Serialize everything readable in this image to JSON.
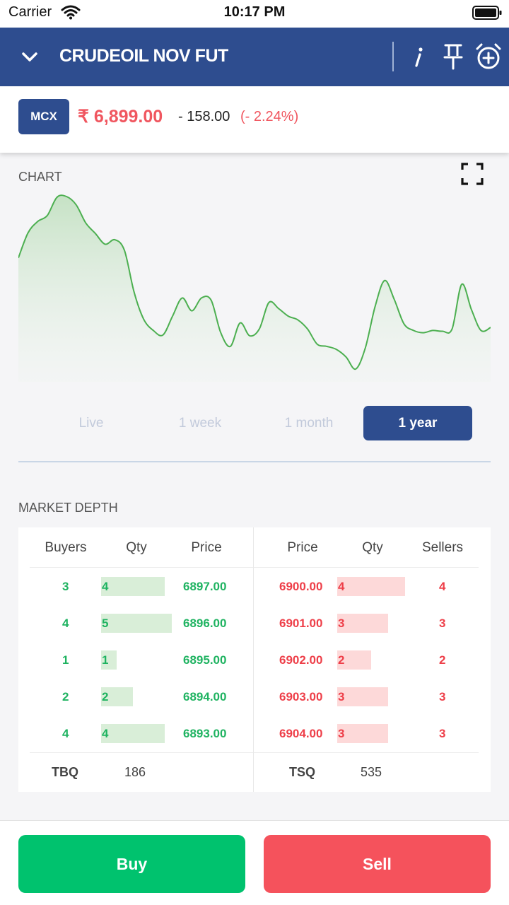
{
  "status_bar": {
    "carrier": "Carrier",
    "time": "10:17 PM"
  },
  "header": {
    "title": "CRUDEOIL NOV FUT",
    "icons": [
      "chevron-down-icon",
      "info-icon",
      "pin-icon",
      "alarm-add-icon"
    ]
  },
  "quote": {
    "exchange": "MCX",
    "price": "₹ 6,899.00",
    "change": "- 158.00",
    "change_pct": "(- 2.24%)"
  },
  "chart": {
    "label": "CHART",
    "ranges": [
      "Live",
      "1 week",
      "1 month",
      "1 year"
    ],
    "selected_range": "1 year"
  },
  "chart_data": {
    "type": "area",
    "color": "#4caf50",
    "values": [
      6970,
      7003,
      7018,
      7026,
      7050,
      7051,
      7040,
      7016,
      7002,
      6988,
      6994,
      6980,
      6925,
      6889,
      6874,
      6868,
      6893,
      6917,
      6900,
      6917,
      6914,
      6871,
      6853,
      6884,
      6867,
      6876,
      6911,
      6903,
      6893,
      6888,
      6876,
      6856,
      6853,
      6849,
      6839,
      6823,
      6851,
      6905,
      6940,
      6915,
      6883,
      6874,
      6871,
      6874,
      6873,
      6876,
      6935,
      6902,
      6874,
      6878
    ]
  },
  "market_depth": {
    "label": "MARKET DEPTH",
    "headers": {
      "buyers": "Buyers",
      "bid_qty": "Qty",
      "bid_price": "Price",
      "ask_price": "Price",
      "ask_qty": "Qty",
      "sellers": "Sellers"
    },
    "bids": [
      {
        "orders": "3",
        "qty": "4",
        "price": "6897.00"
      },
      {
        "orders": "4",
        "qty": "5",
        "price": "6896.00"
      },
      {
        "orders": "1",
        "qty": "1",
        "price": "6895.00"
      },
      {
        "orders": "2",
        "qty": "2",
        "price": "6894.00"
      },
      {
        "orders": "4",
        "qty": "4",
        "price": "6893.00"
      }
    ],
    "asks": [
      {
        "price": "6900.00",
        "qty": "4",
        "orders": "4"
      },
      {
        "price": "6901.00",
        "qty": "3",
        "orders": "3"
      },
      {
        "price": "6902.00",
        "qty": "2",
        "orders": "2"
      },
      {
        "price": "6903.00",
        "qty": "3",
        "orders": "3"
      },
      {
        "price": "6904.00",
        "qty": "3",
        "orders": "3"
      }
    ],
    "totals": {
      "tbq_label": "TBQ",
      "tbq": "186",
      "tsq_label": "TSQ",
      "tsq": "535"
    }
  },
  "actions": {
    "buy": "Buy",
    "sell": "Sell"
  },
  "colors": {
    "header": "#2e4d8f",
    "buy": "#00c26e",
    "sell": "#f5525c",
    "price_down": "#f0565f"
  }
}
